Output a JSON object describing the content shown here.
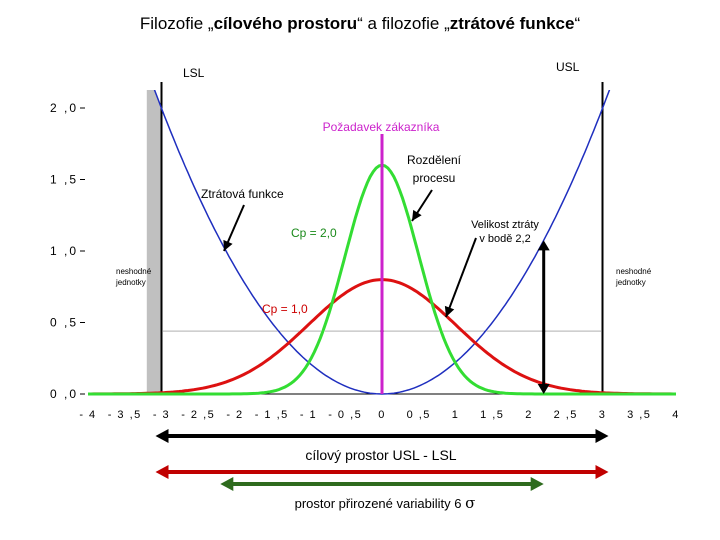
{
  "title": {
    "prefix": "Filozofie „",
    "bold1": "cílového prostoru",
    "middle": "“ a filozofie „",
    "bold2": "ztrátové funkce",
    "suffix": "“"
  },
  "spec_limits": {
    "lsl_label": "LSL",
    "usl_label": "USL",
    "lsl": -3,
    "usl": 3
  },
  "annotations": {
    "requirement": "Požadavek zákazníka",
    "distribution_line1": "Rozdělení",
    "distribution_line2": "procesu",
    "loss_function": "Ztrátová funkce",
    "cp2": "Cp = 2,0",
    "cp1": "Cp = 1,0",
    "loss_size_line1": "Velikost ztráty",
    "loss_size_line2": "v bodě 2,2",
    "nonconforming_line1": "neshodné",
    "nonconforming_line2": "jednotky"
  },
  "bottom": {
    "target_space": "cílový prostor  USL - LSL",
    "variability_prefix": "prostor přirozené variability  6 ",
    "sigma": "σ"
  },
  "colors": {
    "loss": "#1f2fbf",
    "cp2": "#33dd33",
    "cp1": "#dd1111",
    "target": "#cc22cc",
    "fill": "#c0c0c0",
    "arrow_dark_red": "#c00000",
    "arrow_dark_green": "#2e6b1e"
  },
  "chart_data": {
    "type": "line",
    "xlim": [
      -4,
      4
    ],
    "ylim": [
      0,
      2
    ],
    "x_ticks": [
      "- 4",
      "- 3 ,5",
      "- 3",
      "- 2 ,5",
      "- 2",
      "- 1 ,5",
      "- 1",
      "- 0 ,5",
      "0",
      "0 ,5",
      "1",
      "1 ,5",
      "2",
      "2 ,5",
      "3",
      "3 ,5",
      "4"
    ],
    "y_ticks": [
      "0 ,0",
      "0 ,5",
      "1 ,0",
      "1 ,5",
      "2 ,0"
    ],
    "target": 0,
    "reference_line_y": 0.44,
    "loss_at_x": 2.2,
    "series": [
      {
        "function": "quadratic",
        "coefficient": 0.222,
        "center": 0
      },
      {
        "function": "normal",
        "mean": 0,
        "sigma": 0.5,
        "peak": 1.6
      },
      {
        "function": "normal",
        "mean": 0,
        "sigma": 1.0,
        "peak": 0.8
      }
    ]
  }
}
